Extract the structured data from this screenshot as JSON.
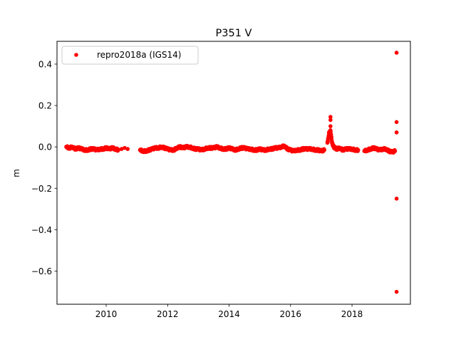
{
  "chart_data": {
    "type": "scatter",
    "title": "P351 V",
    "xlabel": "",
    "ylabel": "m",
    "xlim": [
      2008.4,
      2019.9
    ],
    "ylim": [
      -0.76,
      0.51
    ],
    "x_ticks": [
      2010,
      2012,
      2014,
      2016,
      2018
    ],
    "y_ticks": [
      0.4,
      0.2,
      0.0,
      -0.2,
      -0.4,
      -0.6
    ],
    "x_tick_labels": [
      "2010",
      "2012",
      "2014",
      "2016",
      "2018"
    ],
    "y_tick_labels": [
      "0.4",
      "0.2",
      "0.0",
      "−0.2",
      "−0.4",
      "−0.6"
    ],
    "grid": false,
    "legend_position": "top-left",
    "series": [
      {
        "name": "repro2018a (IGS14)",
        "color": "#ff0000",
        "marker": "dot",
        "segments": [
          {
            "x": [
              2008.7,
              2008.8,
              2008.9,
              2009.0,
              2009.1,
              2009.2,
              2009.3,
              2009.4,
              2009.5,
              2009.6,
              2009.7,
              2009.8,
              2009.9,
              2010.0,
              2010.1,
              2010.2,
              2010.3,
              2010.4
            ],
            "y": [
              0.0,
              -0.005,
              0.0,
              -0.01,
              -0.005,
              -0.01,
              -0.015,
              -0.015,
              -0.01,
              -0.01,
              -0.015,
              -0.01,
              -0.01,
              -0.005,
              -0.01,
              -0.005,
              -0.01,
              -0.015
            ]
          },
          {
            "x": [
              2010.5,
              2010.6,
              2010.7
            ],
            "y": [
              -0.01,
              -0.005,
              -0.01
            ]
          },
          {
            "x": [
              2011.1,
              2011.2,
              2011.3,
              2011.4,
              2011.5,
              2011.6,
              2011.7,
              2011.8,
              2011.9,
              2012.0,
              2012.1,
              2012.2,
              2012.3,
              2012.4,
              2012.5,
              2012.6,
              2012.7,
              2012.8,
              2012.9,
              2013.0,
              2013.1,
              2013.2,
              2013.3,
              2013.4,
              2013.5,
              2013.6,
              2013.7,
              2013.8,
              2013.9,
              2014.0,
              2014.1,
              2014.2,
              2014.3,
              2014.4,
              2014.5,
              2014.6,
              2014.7,
              2014.8,
              2014.9,
              2015.0,
              2015.1,
              2015.2,
              2015.3,
              2015.4,
              2015.5,
              2015.6,
              2015.7,
              2015.8,
              2015.9,
              2016.0,
              2016.1,
              2016.2,
              2016.3,
              2016.4,
              2016.5,
              2016.6,
              2016.7,
              2016.8,
              2016.9,
              2017.0,
              2017.1
            ],
            "y": [
              -0.015,
              -0.02,
              -0.02,
              -0.015,
              -0.01,
              -0.005,
              -0.005,
              0.0,
              -0.005,
              -0.01,
              -0.015,
              -0.015,
              -0.005,
              0.0,
              -0.005,
              0.0,
              0.0,
              -0.005,
              -0.01,
              -0.01,
              -0.015,
              -0.01,
              -0.005,
              -0.005,
              -0.005,
              0.0,
              -0.005,
              -0.01,
              -0.01,
              -0.005,
              -0.01,
              -0.015,
              -0.01,
              -0.005,
              -0.005,
              -0.01,
              -0.01,
              -0.015,
              -0.015,
              -0.01,
              -0.015,
              -0.015,
              -0.01,
              -0.01,
              -0.005,
              -0.005,
              0.0,
              0.005,
              -0.01,
              -0.015,
              -0.02,
              -0.015,
              -0.015,
              -0.01,
              -0.01,
              -0.01,
              -0.01,
              -0.015,
              -0.015,
              -0.02,
              -0.015
            ]
          },
          {
            "x": [
              2017.2,
              2017.25,
              2017.3,
              2017.35,
              2017.4,
              2017.45,
              2017.5,
              2017.6,
              2017.7,
              2017.8,
              2017.9,
              2018.0,
              2018.1,
              2018.2
            ],
            "y": [
              0.02,
              0.06,
              0.08,
              0.02,
              0.0,
              -0.005,
              -0.01,
              -0.005,
              -0.015,
              -0.01,
              -0.01,
              -0.01,
              -0.015,
              -0.015
            ]
          },
          {
            "x": [
              2017.25,
              2017.3,
              2017.3,
              2017.3
            ],
            "y": [
              0.07,
              0.1,
              0.13,
              0.145
            ]
          },
          {
            "x": [
              2018.4,
              2018.5,
              2018.6,
              2018.7,
              2018.8,
              2018.9,
              2019.0,
              2019.1,
              2019.2,
              2019.3,
              2019.4
            ],
            "y": [
              -0.02,
              -0.015,
              -0.01,
              -0.005,
              -0.01,
              -0.015,
              -0.01,
              -0.01,
              -0.02,
              -0.025,
              -0.02
            ]
          },
          {
            "x": [
              2019.45,
              2019.45,
              2019.45,
              2019.45,
              2019.45
            ],
            "y": [
              0.455,
              0.12,
              0.07,
              -0.25,
              -0.7
            ]
          }
        ]
      }
    ]
  }
}
